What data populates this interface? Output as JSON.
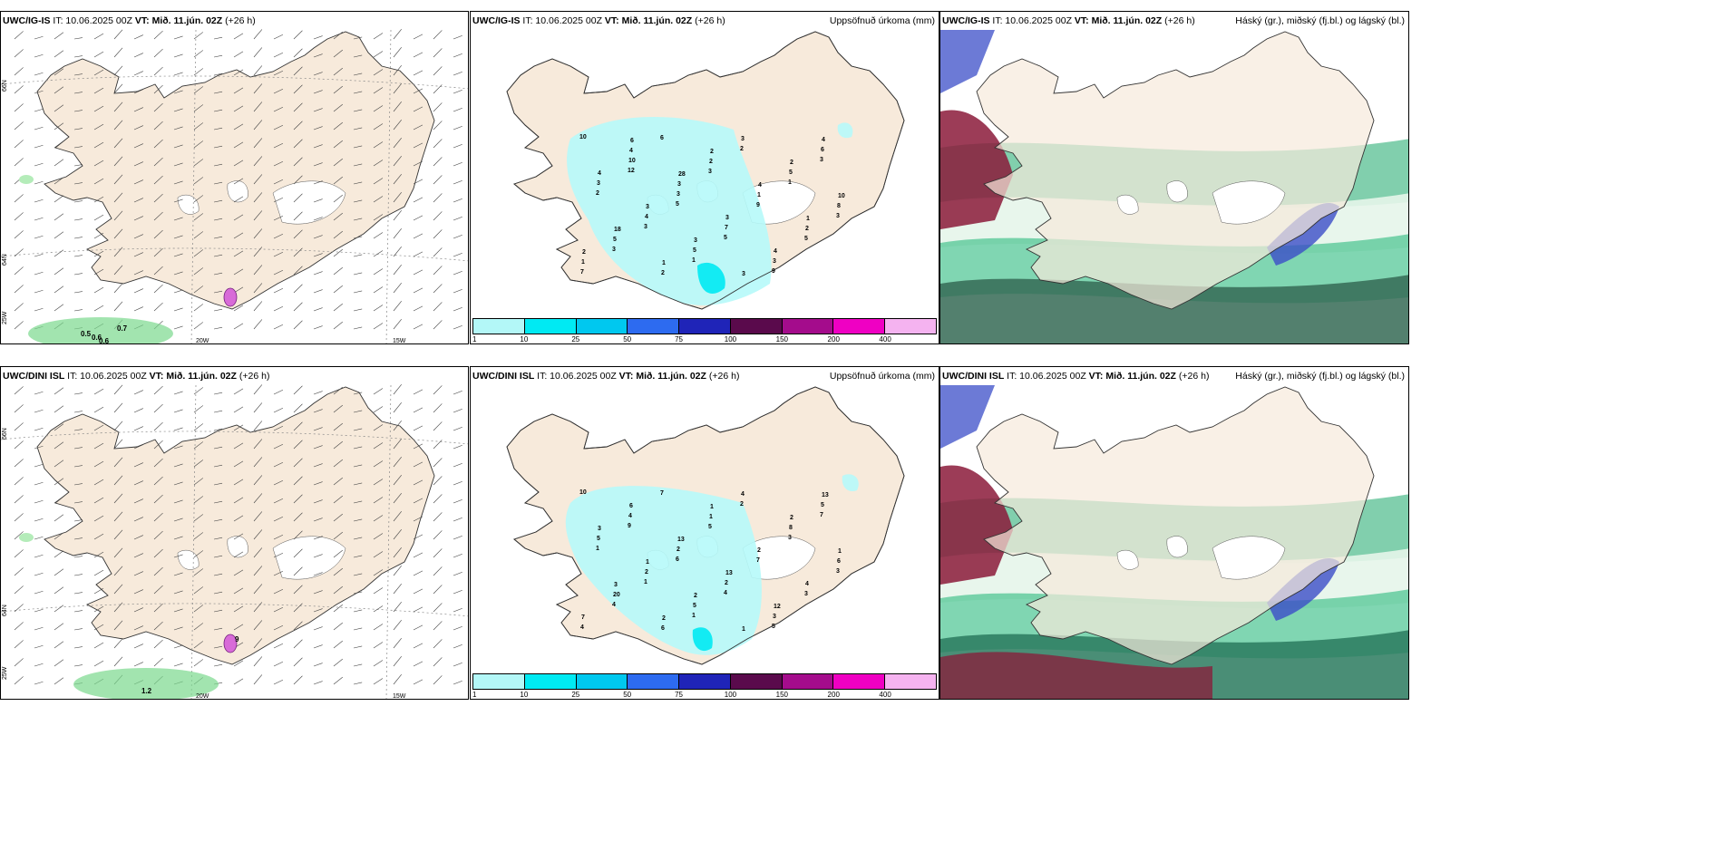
{
  "colors": {
    "land": "#f7eadb",
    "coast": "#333333",
    "precip_light": "#b6f9f9",
    "precip_cyan": "#00e9f2",
    "cloud_high": "#8b1a3a",
    "cloud_mid": "#2b8a5a",
    "cloud_low": "#3b4ec8"
  },
  "rows": [
    {
      "model_code": "UWC/IG-IS",
      "it_text": "IT: 10.06.2025 00Z",
      "vt_label": "VT: Mið. 11.jún. 02Z",
      "lead": "(+26 h)",
      "wind_values": [
        "0.5",
        "0.6",
        "0.6",
        "0.7"
      ],
      "precip_values": [
        "10",
        "12",
        "5",
        "5",
        "9",
        "3",
        "2",
        "3",
        "1",
        "2",
        "1",
        "3",
        "3",
        "6",
        "3",
        "9",
        "5",
        "7",
        "10",
        "3",
        "7",
        "3",
        "6",
        "3",
        "4",
        "5",
        "3",
        "5",
        "8",
        "5",
        "2",
        "2",
        "1",
        "2",
        "1",
        "4",
        "3",
        "3",
        "4",
        "4",
        "4",
        "3",
        "3",
        "3",
        "2",
        "10",
        "18",
        "1",
        "2",
        "4",
        "1",
        "2",
        "6",
        "28"
      ]
    },
    {
      "model_code": "UWC/DINI ISL",
      "it_text": "IT: 10.06.2025 00Z",
      "vt_label": "VT: Mið. 11.jún. 02Z",
      "lead": "(+26 h)",
      "wind_values": [
        "9",
        "1.2"
      ],
      "precip_values": [
        "10",
        "9",
        "6",
        "4",
        "5",
        "7",
        "1",
        "1",
        "1",
        "2",
        "3",
        "3",
        "4",
        "7",
        "5",
        "7",
        "3",
        "4",
        "4",
        "2",
        "2",
        "3",
        "5",
        "5",
        "2",
        "5",
        "4",
        "8",
        "6",
        "20",
        "6",
        "1",
        "2",
        "4",
        "7",
        "6",
        "13",
        "13",
        "12",
        "13",
        "3",
        "1",
        "2",
        "1",
        "2",
        "1",
        "3",
        "2",
        "1"
      ]
    }
  ],
  "precip_panel_title": "Uppsöfnuð úrkoma (mm)",
  "cloud_panel_title": "Háský (gr.), miðský (fj.bl.) og lágský (bl.)",
  "colorbar": {
    "labels": [
      "1",
      "10",
      "25",
      "50",
      "75",
      "100",
      "150",
      "200",
      "400"
    ],
    "colors": [
      "#b3f7f7",
      "#00eaf3",
      "#00c8ef",
      "#2d6bf0",
      "#1f24b8",
      "#5a0a4c",
      "#a40c8c",
      "#ef00c3",
      "#f5b3f0"
    ]
  },
  "axis_labels": {
    "lat66": "66N",
    "lat64": "64N",
    "lat25w": "25W",
    "lon20": "20W",
    "lon15": "15W",
    "lat65": "65N"
  }
}
